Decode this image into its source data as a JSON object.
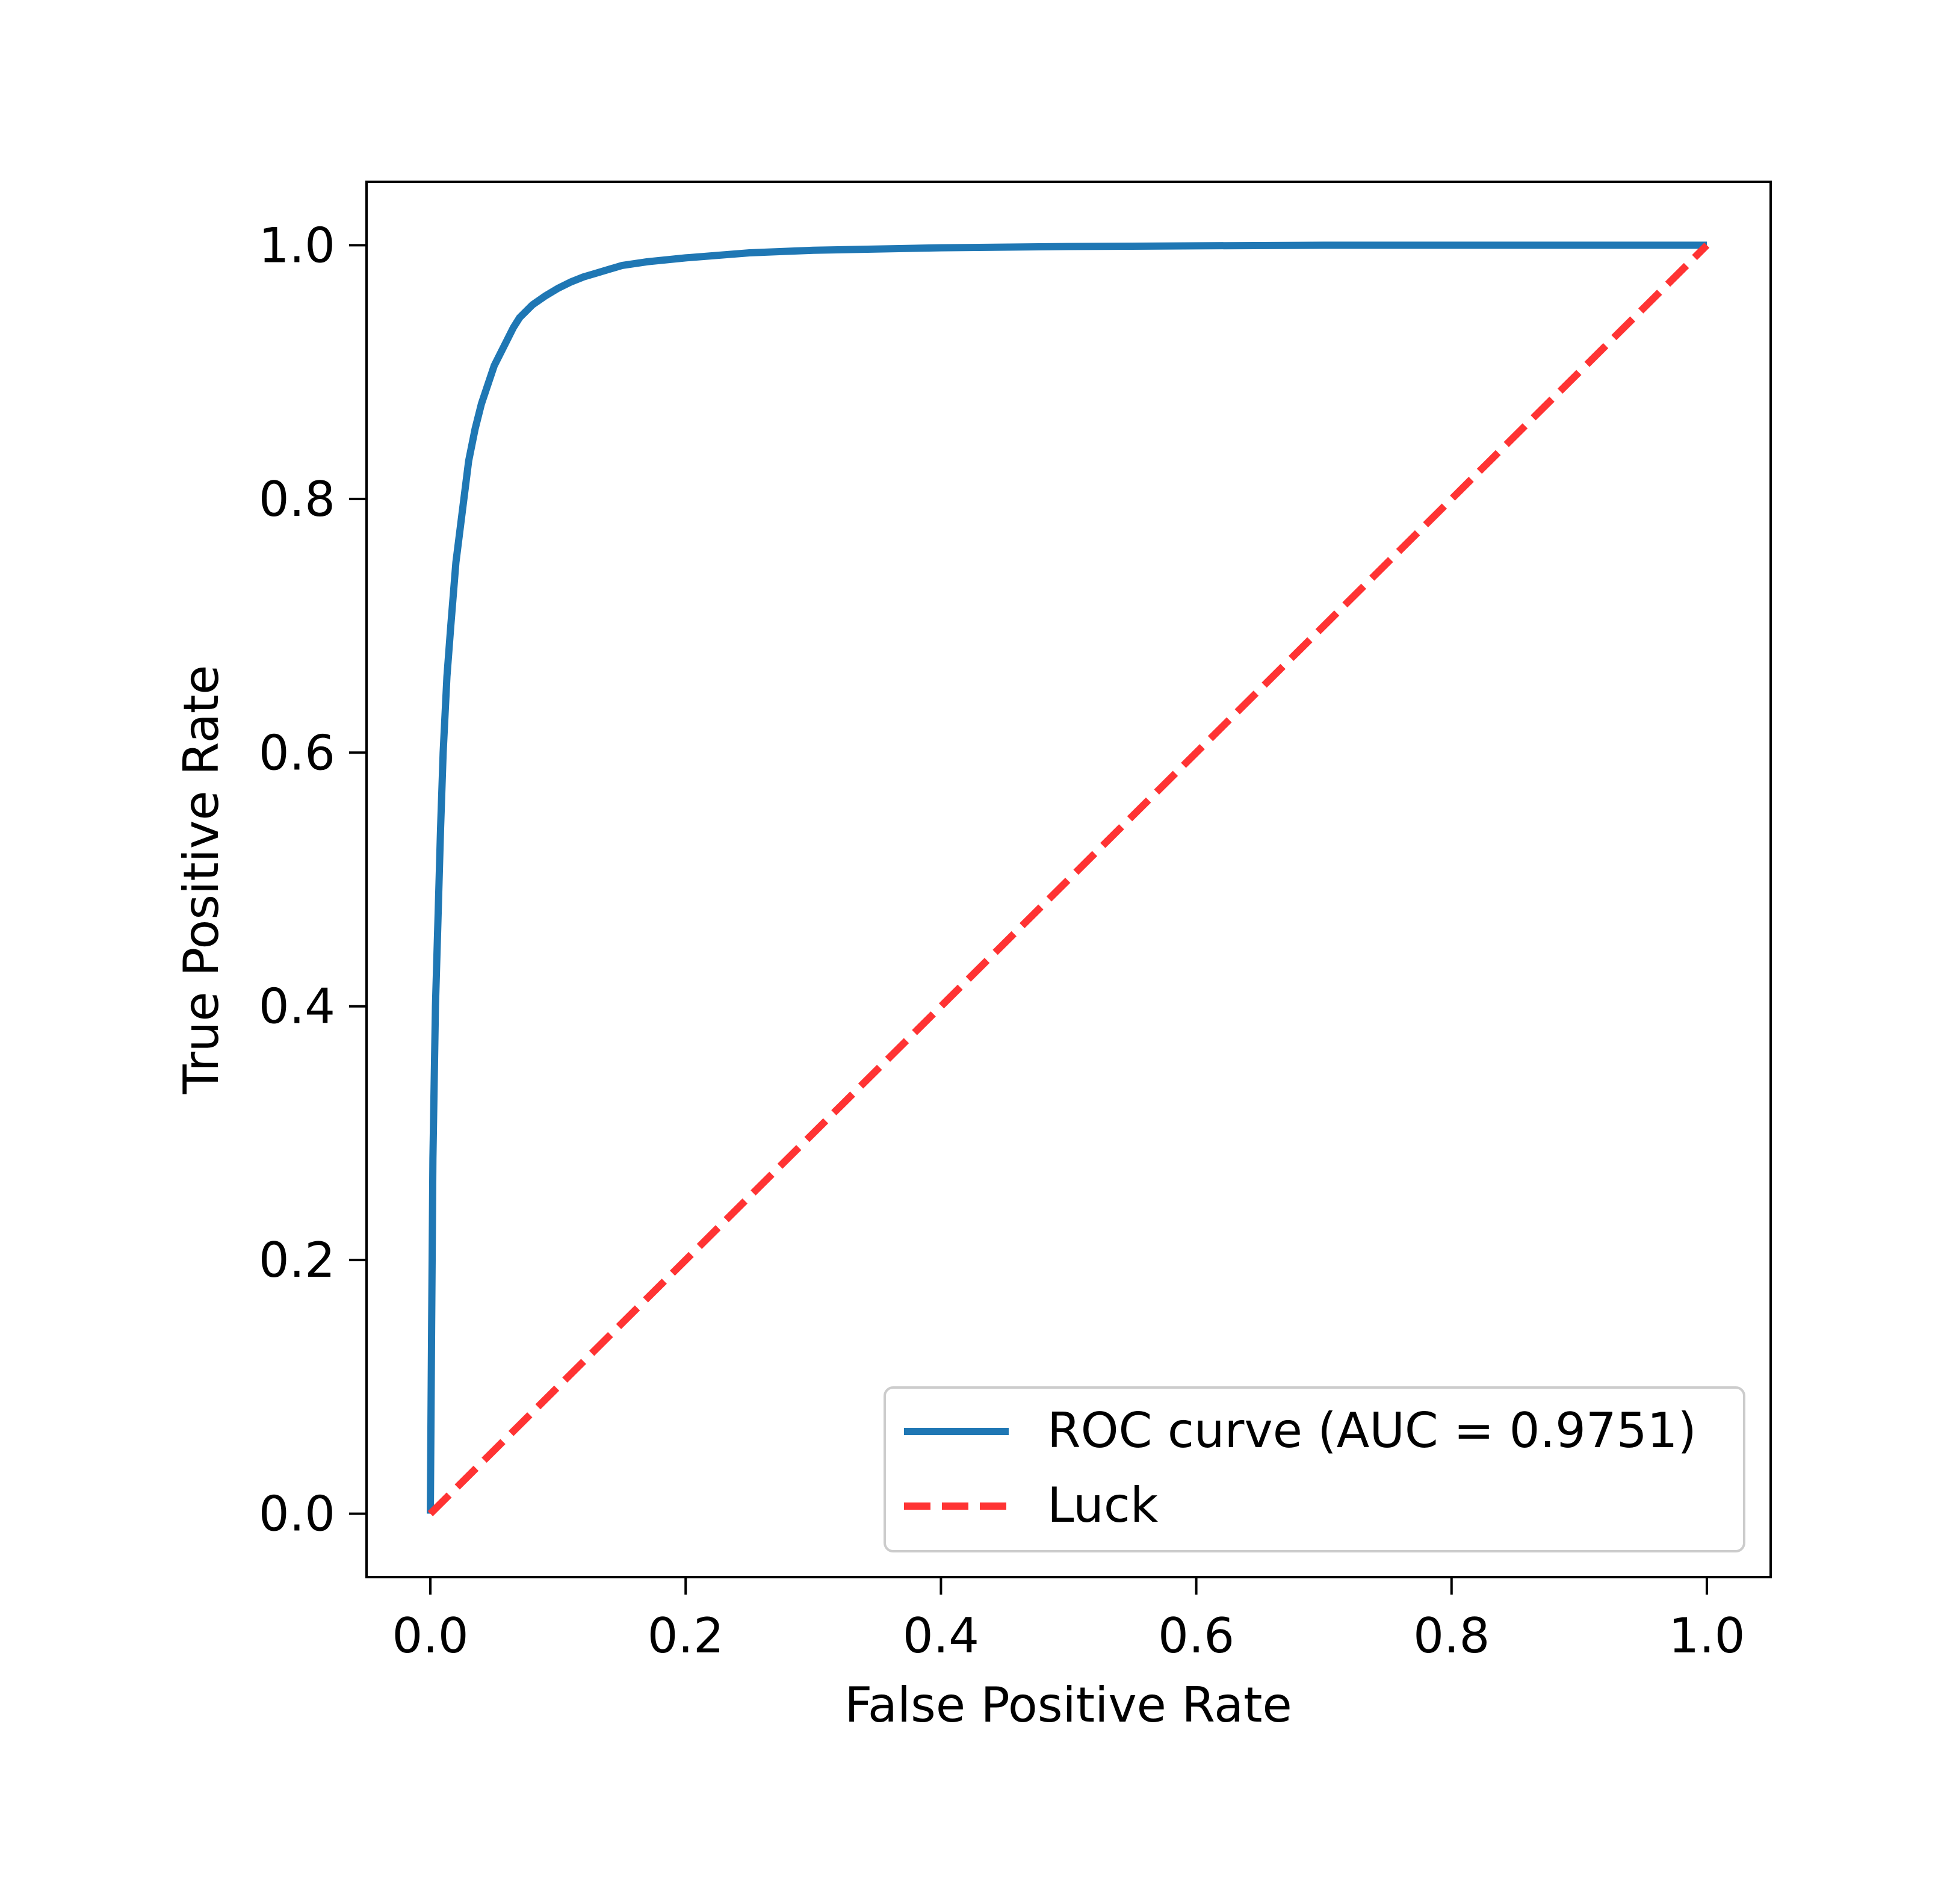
{
  "chart_data": {
    "type": "line",
    "xlabel": "False Positive Rate",
    "ylabel": "True Positive Rate",
    "xlim": [
      -0.05,
      1.05
    ],
    "ylim": [
      -0.05,
      1.05
    ],
    "x_ticks": [
      0.0,
      0.2,
      0.4,
      0.6,
      0.8,
      1.0
    ],
    "y_ticks": [
      0.0,
      0.2,
      0.4,
      0.6,
      0.8,
      1.0
    ],
    "x_tick_labels": [
      "0.0",
      "0.2",
      "0.4",
      "0.6",
      "0.8",
      "1.0"
    ],
    "y_tick_labels": [
      "0.0",
      "0.2",
      "0.4",
      "0.6",
      "0.8",
      "1.0"
    ],
    "grid": false,
    "legend_position": "lower-right",
    "series": [
      {
        "name": "ROC curve (AUC = 0.9751)",
        "color": "#1f77b4",
        "style": "solid",
        "x": [
          0.0,
          0.001,
          0.002,
          0.004,
          0.006,
          0.008,
          0.01,
          0.013,
          0.016,
          0.02,
          0.025,
          0.03,
          0.035,
          0.04,
          0.045,
          0.05,
          0.055,
          0.06,
          0.065,
          0.07,
          0.08,
          0.09,
          0.1,
          0.11,
          0.12,
          0.13,
          0.14,
          0.15,
          0.17,
          0.2,
          0.25,
          0.3,
          0.4,
          0.5,
          0.6,
          0.7,
          0.8,
          0.9,
          1.0
        ],
        "y": [
          0.0,
          0.15,
          0.28,
          0.4,
          0.47,
          0.54,
          0.6,
          0.66,
          0.7,
          0.75,
          0.79,
          0.83,
          0.855,
          0.875,
          0.89,
          0.905,
          0.915,
          0.925,
          0.935,
          0.943,
          0.953,
          0.96,
          0.966,
          0.971,
          0.975,
          0.978,
          0.981,
          0.984,
          0.987,
          0.99,
          0.994,
          0.996,
          0.998,
          0.999,
          0.9995,
          1.0,
          1.0,
          1.0,
          1.0
        ]
      },
      {
        "name": "Luck",
        "color": "#ff3333",
        "style": "dashed",
        "x": [
          0.0,
          1.0
        ],
        "y": [
          0.0,
          1.0
        ]
      }
    ]
  }
}
